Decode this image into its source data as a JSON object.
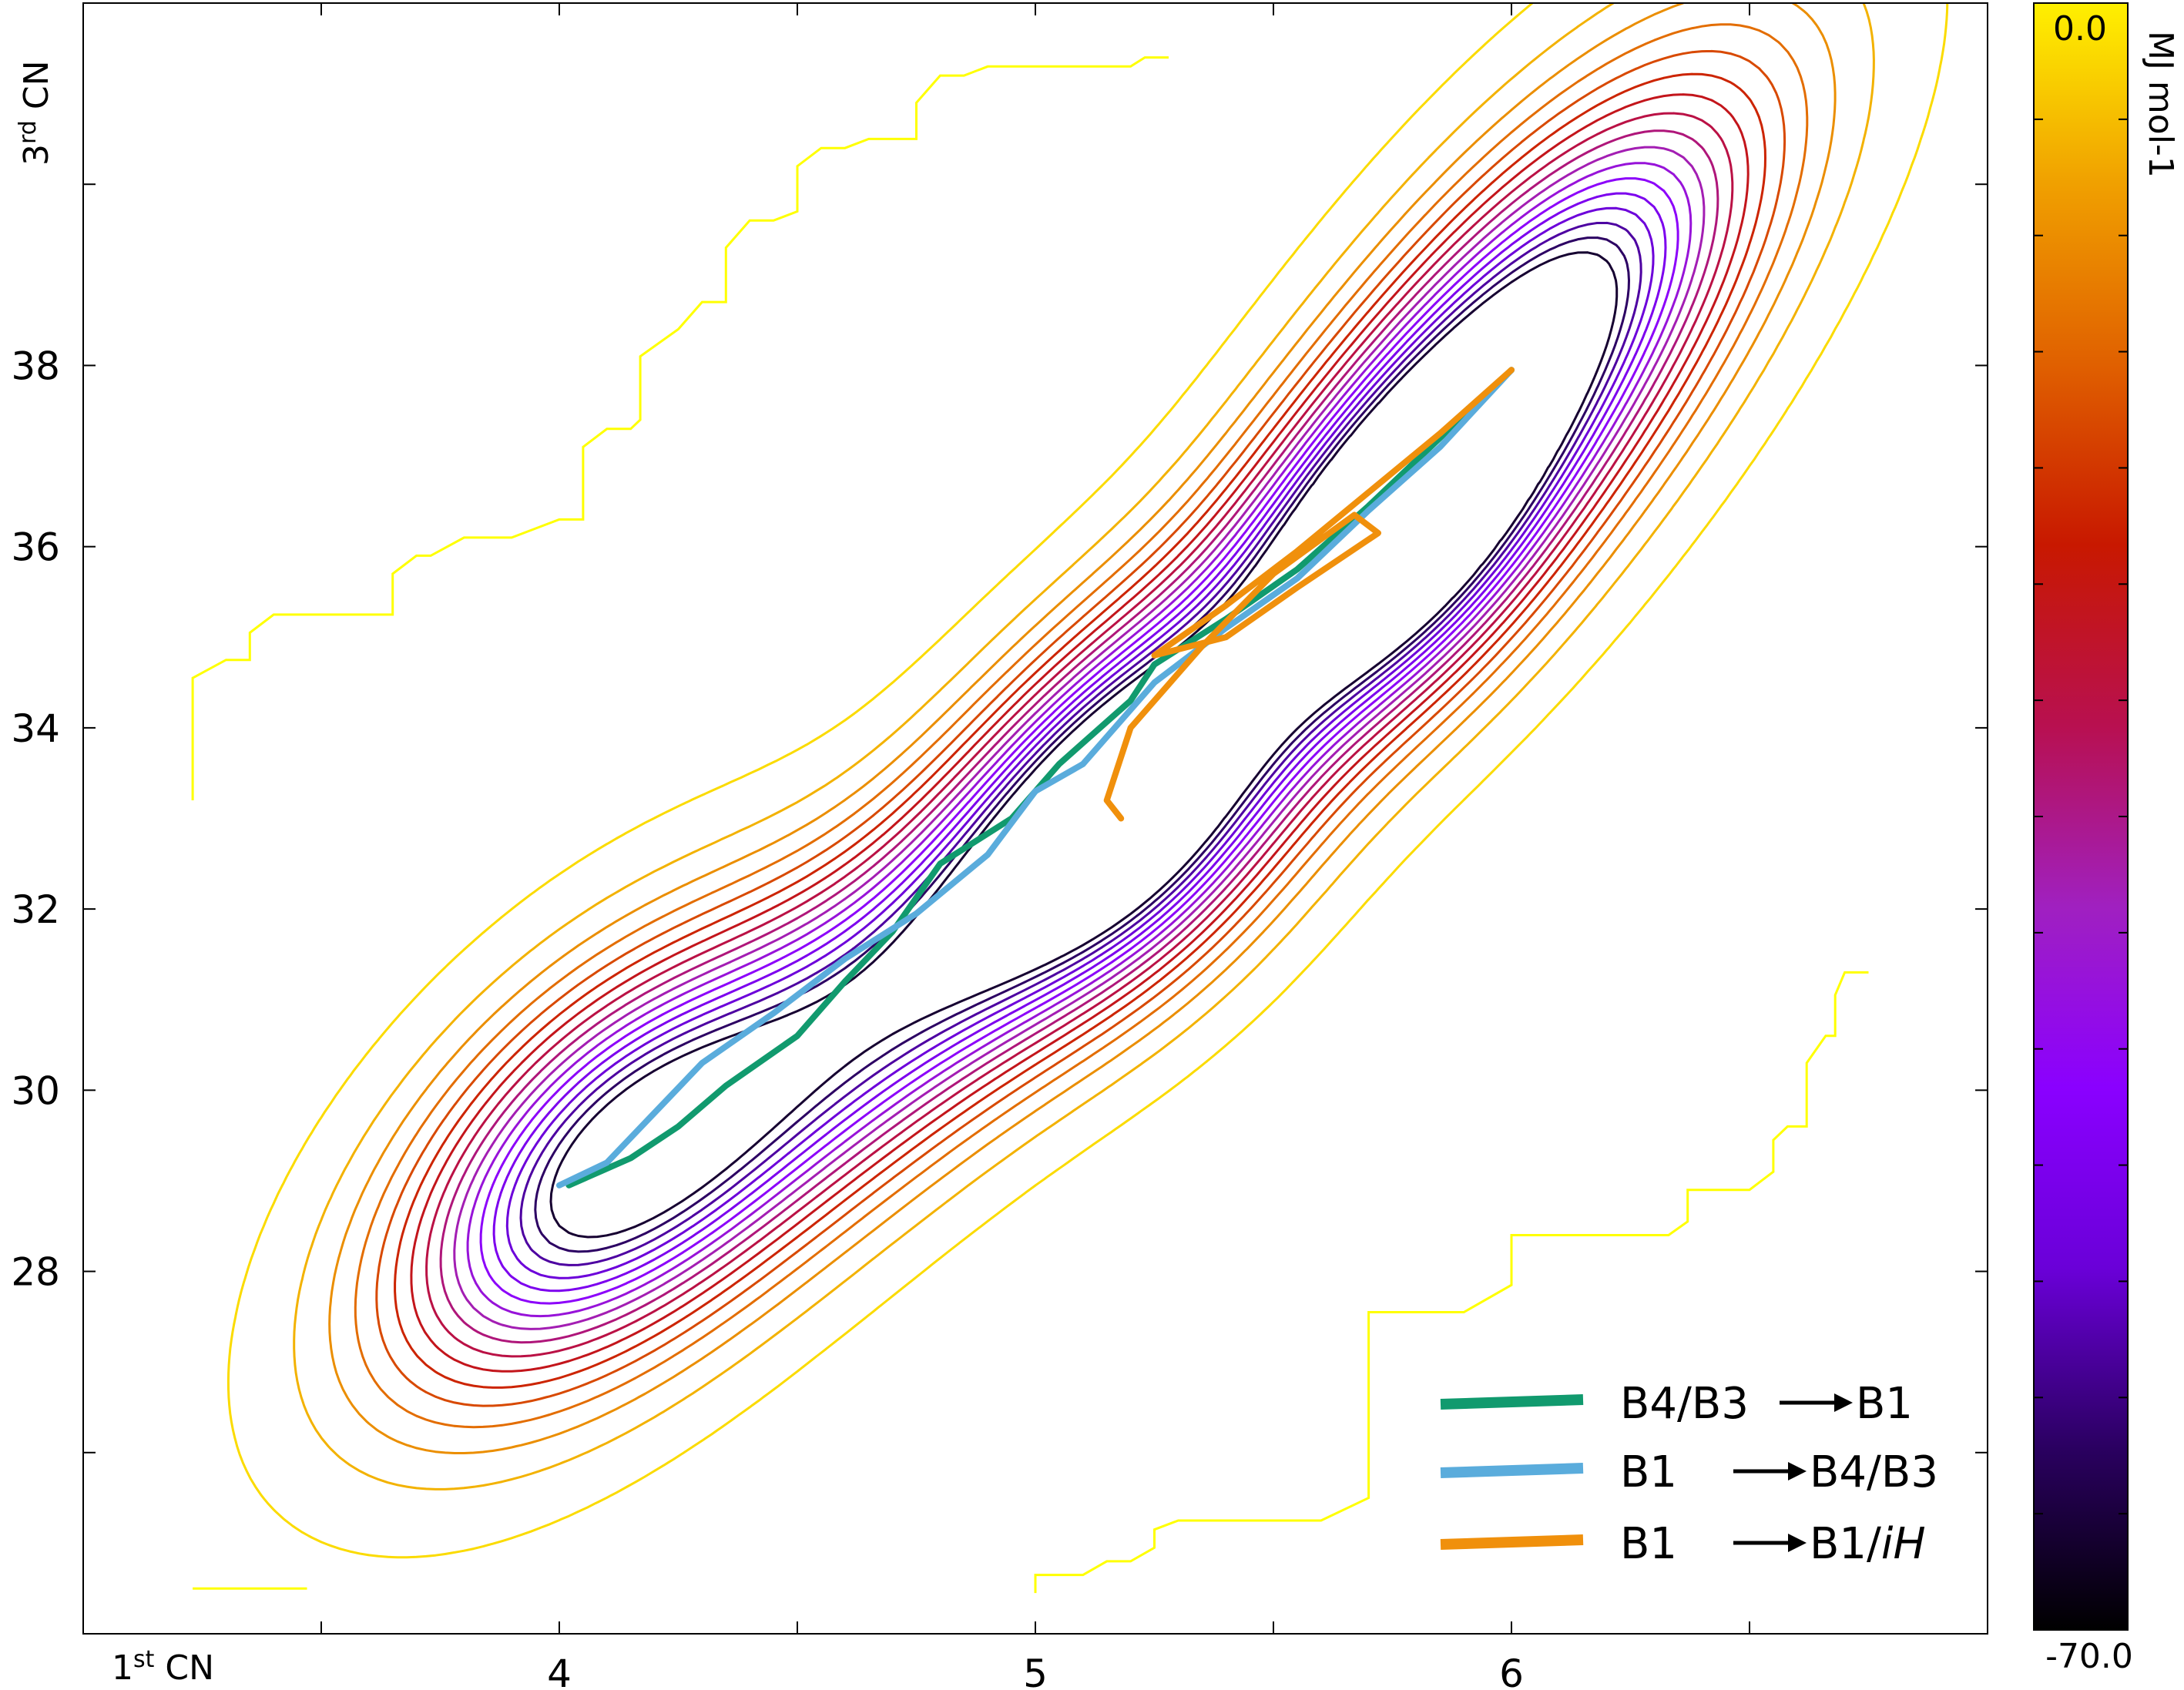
{
  "chart_data": {
    "type": "contour",
    "xlabel": {
      "main": "1",
      "sup": "st",
      "rest": " CN"
    },
    "ylabel": {
      "main": "3",
      "sup": "rd",
      "rest": " CN"
    },
    "xlim": [
      3.0,
      7.0
    ],
    "ylim": [
      24.0,
      42.0
    ],
    "x_ticks": [
      {
        "value": 4,
        "label": "4"
      },
      {
        "value": 5,
        "label": "5"
      },
      {
        "value": 6,
        "label": "6"
      }
    ],
    "x_minor_ticks": [
      3.5,
      4.5,
      5.5,
      6.5
    ],
    "y_ticks": [
      {
        "value": 28,
        "label": "28"
      },
      {
        "value": 30,
        "label": "30"
      },
      {
        "value": 32,
        "label": "32"
      },
      {
        "value": 34,
        "label": "34"
      },
      {
        "value": 36,
        "label": "36"
      },
      {
        "value": 38,
        "label": "38"
      }
    ],
    "y_minor_ticks": [
      26,
      40
    ],
    "colorbar": {
      "title": "MJ mol-1",
      "min": -70.0,
      "max": 0.0,
      "min_label": "-70.0",
      "max_label": "0.0",
      "stops": [
        "#000000",
        "#2a0060",
        "#6a00d8",
        "#8a00ff",
        "#a020c0",
        "#b81050",
        "#c81800",
        "#e06000",
        "#f0a000",
        "#fff000"
      ]
    },
    "contours": {
      "levels": [
        -70,
        -66,
        -62,
        -58,
        -54,
        -50,
        -46,
        -42,
        -38,
        -34,
        -30,
        -26,
        -22,
        -18,
        -14,
        -10,
        -6,
        -2
      ],
      "minima": [
        {
          "x": 6.0,
          "y": 37.9,
          "depth": -70
        },
        {
          "x": 4.1,
          "y": 29.2,
          "depth": -62
        },
        {
          "x": 5.2,
          "y": 33.1,
          "depth": -50
        },
        {
          "x": 5.75,
          "y": 36.0,
          "depth": -46
        }
      ]
    },
    "boundary_contour_color": "#ffff00",
    "series": [
      {
        "name": "B4/B3 → B1",
        "color": "#119a6e",
        "points": [
          [
            4.02,
            28.95
          ],
          [
            4.15,
            29.25
          ],
          [
            4.25,
            29.6
          ],
          [
            4.35,
            30.05
          ],
          [
            4.5,
            30.6
          ],
          [
            4.6,
            31.2
          ],
          [
            4.7,
            31.75
          ],
          [
            4.8,
            32.5
          ],
          [
            4.95,
            33.0
          ],
          [
            5.05,
            33.6
          ],
          [
            5.2,
            34.3
          ],
          [
            5.25,
            34.7
          ],
          [
            5.4,
            35.2
          ],
          [
            5.55,
            35.75
          ],
          [
            5.7,
            36.45
          ],
          [
            5.85,
            37.2
          ],
          [
            6.0,
            37.95
          ]
        ]
      },
      {
        "name": "B1 → B4/B3",
        "color": "#5aacdc",
        "points": [
          [
            4.0,
            28.95
          ],
          [
            4.1,
            29.2
          ],
          [
            4.2,
            29.75
          ],
          [
            4.3,
            30.3
          ],
          [
            4.45,
            30.85
          ],
          [
            4.6,
            31.45
          ],
          [
            4.75,
            31.95
          ],
          [
            4.9,
            32.6
          ],
          [
            5.0,
            33.3
          ],
          [
            5.1,
            33.6
          ],
          [
            5.2,
            34.2
          ],
          [
            5.25,
            34.5
          ],
          [
            5.4,
            35.1
          ],
          [
            5.55,
            35.65
          ],
          [
            5.7,
            36.4
          ],
          [
            5.85,
            37.1
          ],
          [
            6.0,
            37.95
          ]
        ]
      },
      {
        "name": "B1 → B1/iH",
        "color": "#f0900c",
        "points": [
          [
            6.0,
            37.95
          ],
          [
            5.85,
            37.25
          ],
          [
            5.7,
            36.6
          ],
          [
            5.55,
            35.95
          ],
          [
            5.4,
            35.35
          ],
          [
            5.25,
            34.8
          ],
          [
            5.4,
            35.0
          ],
          [
            5.55,
            35.55
          ],
          [
            5.72,
            36.15
          ],
          [
            5.67,
            36.35
          ],
          [
            5.5,
            35.7
          ],
          [
            5.35,
            34.9
          ],
          [
            5.2,
            34.0
          ],
          [
            5.15,
            33.2
          ],
          [
            5.18,
            33.0
          ]
        ]
      }
    ],
    "legend": {
      "placement": "bottom-right",
      "entries": [
        {
          "from": "B4/B3",
          "to": "B1",
          "to_italic": ""
        },
        {
          "from": "B1",
          "to": "B4/B3",
          "to_italic": ""
        },
        {
          "from": "B1",
          "to": "B1/",
          "to_italic": "iH"
        }
      ]
    }
  }
}
